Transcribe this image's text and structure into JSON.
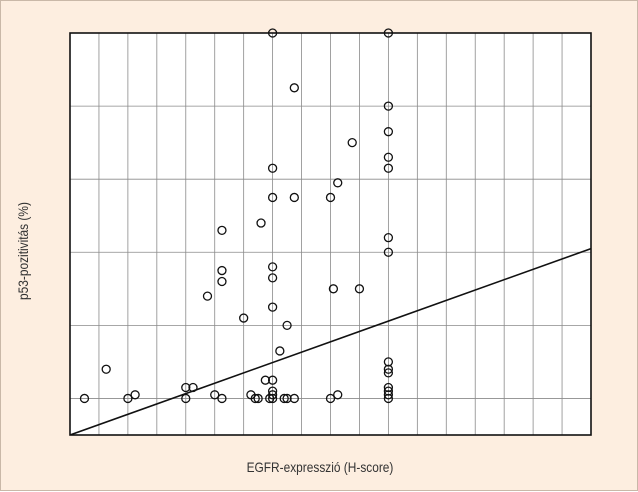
{
  "chart_data": {
    "type": "scatter",
    "xlabel": "EGFR-expresszió (H-score)",
    "ylabel": "p53-pozitivitás (%)",
    "xlim": [
      -40,
      320
    ],
    "ylim": [
      -10,
      100
    ],
    "x_gridlines": [
      -20,
      0,
      20,
      40,
      60,
      80,
      100,
      120,
      140,
      160,
      180,
      200,
      220,
      240,
      260,
      280,
      300
    ],
    "y_gridlines": [
      0,
      20,
      40,
      60,
      80,
      100
    ],
    "grid": true,
    "marker": "open-circle",
    "points": [
      [
        -30,
        0
      ],
      [
        -15,
        8
      ],
      [
        0,
        0
      ],
      [
        5,
        1
      ],
      [
        40,
        3
      ],
      [
        40,
        0
      ],
      [
        45,
        3
      ],
      [
        55,
        28
      ],
      [
        60,
        1
      ],
      [
        65,
        0
      ],
      [
        65,
        32
      ],
      [
        65,
        35
      ],
      [
        65,
        46
      ],
      [
        80,
        22
      ],
      [
        85,
        1
      ],
      [
        88,
        0
      ],
      [
        90,
        0
      ],
      [
        92,
        48
      ],
      [
        95,
        5
      ],
      [
        98,
        0
      ],
      [
        100,
        0
      ],
      [
        100,
        1
      ],
      [
        100,
        2
      ],
      [
        100,
        5
      ],
      [
        100,
        25
      ],
      [
        100,
        33
      ],
      [
        100,
        36
      ],
      [
        100,
        55
      ],
      [
        100,
        63
      ],
      [
        100,
        100
      ],
      [
        105,
        13
      ],
      [
        108,
        0
      ],
      [
        110,
        0
      ],
      [
        110,
        20
      ],
      [
        115,
        0
      ],
      [
        115,
        55
      ],
      [
        115,
        85
      ],
      [
        140,
        0
      ],
      [
        140,
        55
      ],
      [
        142,
        30
      ],
      [
        145,
        1
      ],
      [
        145,
        59
      ],
      [
        155,
        70
      ],
      [
        160,
        30
      ],
      [
        180,
        0
      ],
      [
        180,
        1
      ],
      [
        180,
        2
      ],
      [
        180,
        3
      ],
      [
        180,
        7
      ],
      [
        180,
        8
      ],
      [
        180,
        10
      ],
      [
        180,
        40
      ],
      [
        180,
        44
      ],
      [
        180,
        63
      ],
      [
        180,
        66
      ],
      [
        180,
        73
      ],
      [
        180,
        80
      ],
      [
        180,
        100
      ]
    ],
    "trendline": {
      "x": [
        -40,
        320
      ],
      "y": [
        -10,
        41
      ]
    }
  },
  "style": {
    "background": "#fdeee0",
    "plot_background": "#ffffff",
    "grid_color": "#8a8a8a",
    "ink_color": "#111111"
  }
}
